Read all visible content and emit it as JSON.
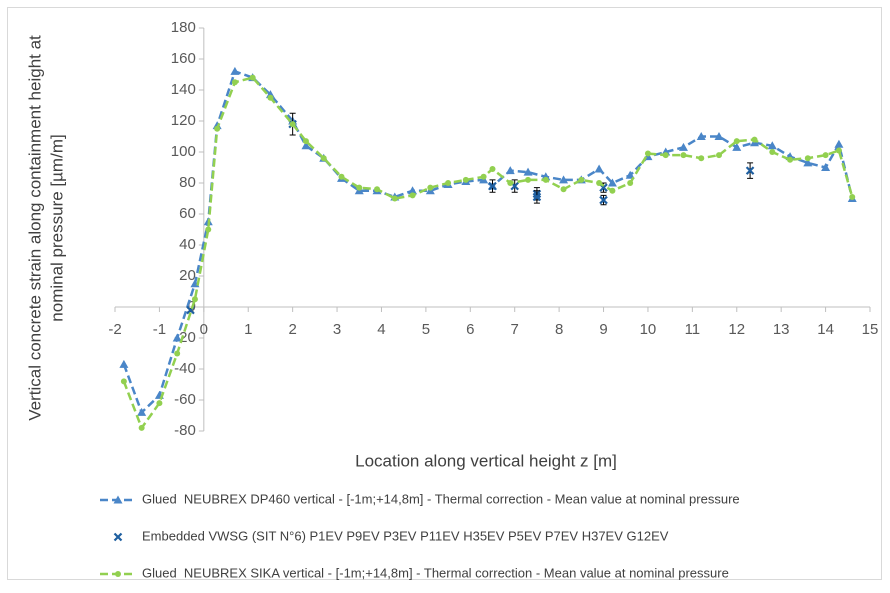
{
  "chart_data": {
    "type": "line",
    "xlabel": "Location along vertical height z [m]",
    "ylabel": [
      "Vertical concrete strain along containment height at",
      "nominal pressure [µm/m]"
    ],
    "xlim": [
      -2,
      15
    ],
    "ylim": [
      -80,
      180
    ],
    "xticks": [
      -2,
      -1,
      0,
      1,
      2,
      3,
      4,
      5,
      6,
      7,
      8,
      9,
      10,
      11,
      12,
      13,
      14,
      15
    ],
    "yticks": [
      -80,
      -60,
      -40,
      -20,
      0,
      20,
      40,
      60,
      80,
      100,
      120,
      140,
      160,
      180
    ],
    "grid": false,
    "legend": "bottom",
    "series": [
      {
        "name": "Glued  NEUBREX DP460 vertical - [-1m;+14,8m] - Thermal correction - Mean value at nominal pressure",
        "type": "line",
        "marker": "triangle",
        "color": "#4a86c8",
        "x": [
          -1.8,
          -1.4,
          -1.0,
          -0.6,
          -0.2,
          0.1,
          0.3,
          0.7,
          1.1,
          1.5,
          2.0,
          2.3,
          2.7,
          3.1,
          3.5,
          3.9,
          4.3,
          4.7,
          5.1,
          5.5,
          5.9,
          6.3,
          6.5,
          6.9,
          7.3,
          7.7,
          8.1,
          8.5,
          8.9,
          9.2,
          9.6,
          10.0,
          10.4,
          10.8,
          11.2,
          11.6,
          12.0,
          12.4,
          12.8,
          13.2,
          13.6,
          14.0,
          14.3,
          14.6
        ],
        "values": [
          -37,
          -68,
          -57,
          -20,
          15,
          55,
          117,
          152,
          148,
          137,
          120,
          104,
          96,
          83,
          75,
          75,
          71,
          75,
          75,
          79,
          81,
          82,
          78,
          88,
          87,
          84,
          82,
          82,
          89,
          80,
          85,
          97,
          100,
          103,
          110,
          110,
          103,
          106,
          104,
          97,
          93,
          90,
          105,
          70
        ]
      },
      {
        "name": "Embedded VWSG (SIT N°6) P1EV P9EV P3EV P11EV H35EV P5EV P7EV H37EV G12EV",
        "type": "scatter",
        "marker": "x",
        "color": "#1f5fa0",
        "x": [
          -0.3,
          2.0,
          6.5,
          7.0,
          7.5,
          7.5,
          9.0,
          9.0,
          12.3
        ],
        "values": [
          -2,
          118,
          78,
          78,
          73,
          71,
          69,
          77,
          88
        ],
        "errors": [
          1,
          7,
          4,
          4,
          4,
          4,
          3,
          3,
          5
        ]
      },
      {
        "name": "Glued  NEUBREX SIKA vertical - [-1m;+14,8m] - Thermal correction - Mean value at nominal pressure",
        "type": "line",
        "marker": "circle",
        "color": "#92d050",
        "x": [
          -1.8,
          -1.4,
          -1.0,
          -0.6,
          -0.2,
          0.1,
          0.3,
          0.7,
          1.1,
          1.5,
          2.0,
          2.3,
          2.7,
          3.1,
          3.5,
          3.9,
          4.3,
          4.7,
          5.1,
          5.5,
          5.9,
          6.3,
          6.5,
          6.9,
          7.3,
          7.7,
          8.1,
          8.5,
          8.9,
          9.2,
          9.6,
          10.0,
          10.4,
          10.8,
          11.2,
          11.6,
          12.0,
          12.4,
          12.8,
          13.2,
          13.6,
          14.0,
          14.3,
          14.6
        ],
        "values": [
          -48,
          -78,
          -62,
          -30,
          5,
          50,
          115,
          145,
          148,
          135,
          118,
          107,
          96,
          84,
          77,
          76,
          70,
          72,
          77,
          80,
          82,
          84,
          89,
          80,
          82,
          82,
          76,
          82,
          80,
          75,
          80,
          99,
          98,
          98,
          96,
          98,
          107,
          108,
          100,
          95,
          96,
          98,
          101,
          71
        ]
      }
    ]
  }
}
